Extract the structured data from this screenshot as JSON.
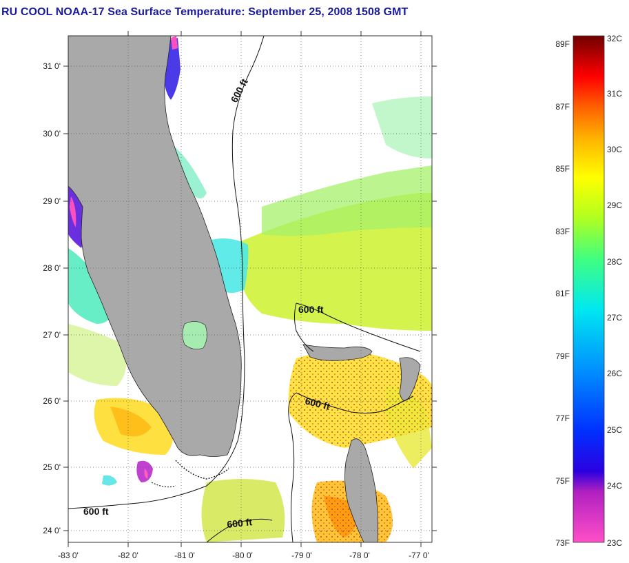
{
  "header": {
    "title": "RU COOL  NOAA-17  Sea Surface Temperature:  September 25, 2008 1508 GMT"
  },
  "map": {
    "lon_ticks": [
      "-83 0'",
      "-82 0'",
      "-81 0'",
      "-80 0'",
      "-79 0'",
      "-78 0'",
      "-77 0'"
    ],
    "lat_ticks": [
      "31 0'",
      "30 0'",
      "29 0'",
      "28 0'",
      "27 0'",
      "26 0'",
      "25 0'",
      "24 0'"
    ],
    "contour_labels": [
      "600 ft",
      "600 ft",
      "600 ft",
      "600 ft",
      "600 ft"
    ],
    "land_color": "#a9a9a9",
    "grid": true
  },
  "colorbar": {
    "fahrenheit_labels": [
      "89F",
      "87F",
      "85F",
      "83F",
      "81F",
      "79F",
      "77F",
      "75F",
      "73F"
    ],
    "celsius_labels": [
      "32C",
      "31C",
      "30C",
      "29C",
      "28C",
      "27C",
      "26C",
      "25C",
      "24C",
      "23C"
    ],
    "colors": [
      "#8b0000",
      "#ff0000",
      "#ff7f00",
      "#ffff00",
      "#7fff00",
      "#00ffff",
      "#0080ff",
      "#0000ff",
      "#9900cc",
      "#ff66cc"
    ]
  }
}
